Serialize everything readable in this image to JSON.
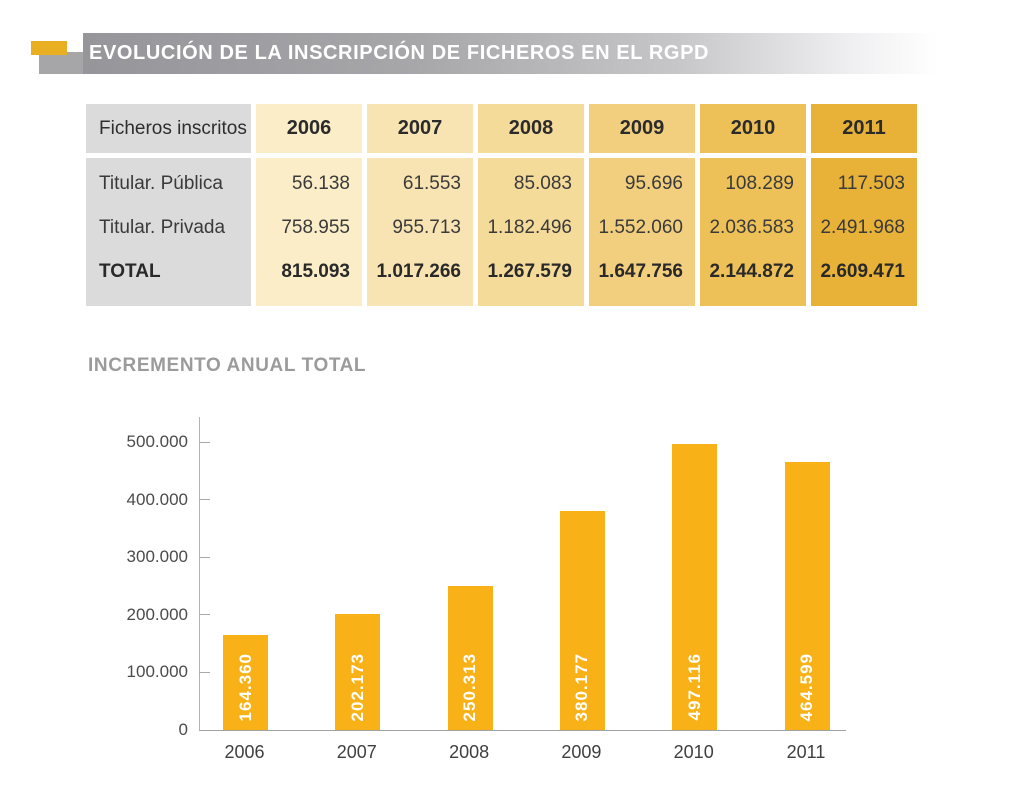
{
  "banner": {
    "title": "EVOLUCIÓN DE LA INSCRIPCIÓN DE FICHEROS EN EL RGPD",
    "accent_color": "#EAAE21"
  },
  "table": {
    "corner_label": "Ficheros inscritos",
    "row_labels": [
      "Titular. Pública",
      "Titular. Privada",
      "TOTAL"
    ],
    "label_bg": "#DBDBDB",
    "columns": [
      {
        "year": "2006",
        "color": "#FAEDC7",
        "values": [
          "56.138",
          "758.955",
          "815.093"
        ]
      },
      {
        "year": "2007",
        "color": "#F8E4B2",
        "values": [
          "61.553",
          "955.713",
          "1.017.266"
        ]
      },
      {
        "year": "2008",
        "color": "#F5DB9A",
        "values": [
          "85.083",
          "1.182.496",
          "1.267.579"
        ]
      },
      {
        "year": "2009",
        "color": "#F2CF7E",
        "values": [
          "95.696",
          "1.552.060",
          "1.647.756"
        ]
      },
      {
        "year": "2010",
        "color": "#EEC158",
        "values": [
          "108.289",
          "2.036.583",
          "2.144.872"
        ]
      },
      {
        "year": "2011",
        "color": "#E8B138",
        "values": [
          "117.503",
          "2.491.968",
          "2.609.471"
        ]
      }
    ]
  },
  "chart_data": {
    "type": "bar",
    "title": "INCREMENTO ANUAL TOTAL",
    "categories": [
      "2006",
      "2007",
      "2008",
      "2009",
      "2010",
      "2011"
    ],
    "values": [
      164360,
      202173,
      250313,
      380177,
      497116,
      464599
    ],
    "bar_labels": [
      "164.360",
      "202.173",
      "250.313",
      "380.177",
      "497.116",
      "464.599"
    ],
    "y_ticks": [
      0,
      100000,
      200000,
      300000,
      400000,
      500000
    ],
    "y_tick_labels": [
      "0",
      "100.000",
      "200.000",
      "300.000",
      "400.000",
      "500.000"
    ],
    "ylim": [
      0,
      500000
    ],
    "xlabel": "",
    "ylabel": "",
    "grid": false,
    "legend": "none",
    "bar_color": "#F9B118",
    "bar_label_color": "#FFFFFF"
  }
}
